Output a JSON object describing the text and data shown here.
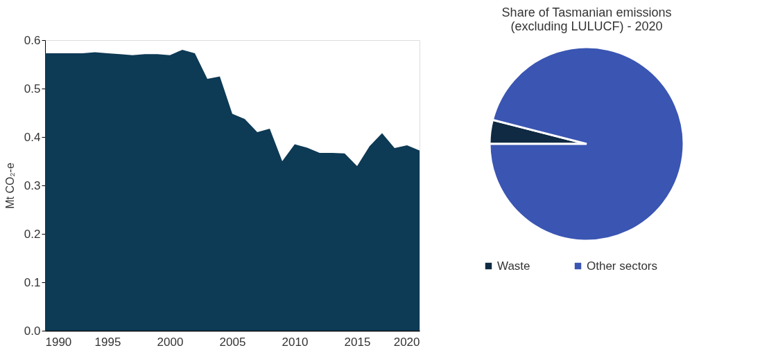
{
  "chart_data": [
    {
      "type": "area",
      "ylabel": "Mt CO₂-e",
      "x": [
        1990,
        1991,
        1992,
        1993,
        1994,
        1995,
        1996,
        1997,
        1998,
        1999,
        2000,
        2001,
        2002,
        2003,
        2004,
        2005,
        2006,
        2007,
        2008,
        2009,
        2010,
        2011,
        2012,
        2013,
        2014,
        2015,
        2016,
        2017,
        2018,
        2019,
        2020
      ],
      "series": [
        {
          "color": "#0d3a55",
          "values": [
            0.573,
            0.573,
            0.573,
            0.573,
            0.575,
            0.573,
            0.571,
            0.569,
            0.571,
            0.571,
            0.569,
            0.58,
            0.573,
            0.52,
            0.525,
            0.448,
            0.437,
            0.41,
            0.417,
            0.35,
            0.385,
            0.378,
            0.367,
            0.367,
            0.366,
            0.34,
            0.381,
            0.408,
            0.377,
            0.383,
            0.372
          ]
        }
      ],
      "xlim": [
        1990,
        2020
      ],
      "xticks": [
        1990,
        1995,
        2000,
        2005,
        2010,
        2015,
        2020
      ],
      "ylim": [
        0,
        0.6
      ],
      "yticks": [
        {
          "value": 0,
          "label": "0.0"
        },
        0.1,
        0.2,
        0.3,
        0.4,
        0.5,
        0.6
      ],
      "grid": false
    },
    {
      "type": "pie",
      "title": "Share of Tasmanian emissions (excluding LULUCF) - 2020",
      "categories": [
        "Waste",
        "Other sectors"
      ],
      "values": [
        4,
        96
      ],
      "colors": [
        "#0f2a42",
        "#3a55b2"
      ],
      "legend": "bottom"
    }
  ]
}
